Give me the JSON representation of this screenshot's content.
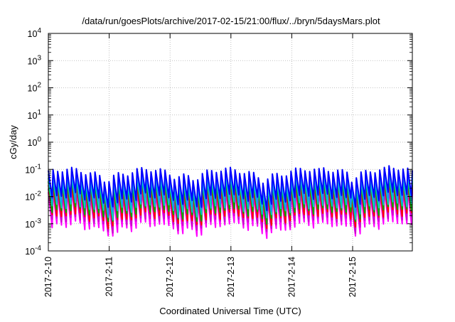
{
  "chart_data": {
    "type": "line",
    "title": "/data/run/goesPlots/archive/2017-02-15/21:00/flux/../bryn/5daysMars.plot",
    "xlabel": "Coordinated Universal Time (UTC)",
    "ylabel": "cGy/day",
    "yscale": "log",
    "ylim": [
      0.0001,
      10000
    ],
    "xlim": [
      "2017-02-10",
      "2017-02-15 21:00"
    ],
    "grid": true,
    "legend": "none",
    "y_ticks": [
      {
        "value": 0.0001,
        "base": "10",
        "exp": "-4"
      },
      {
        "value": 0.001,
        "base": "10",
        "exp": "-3"
      },
      {
        "value": 0.01,
        "base": "10",
        "exp": "-2"
      },
      {
        "value": 0.1,
        "base": "10",
        "exp": "-1"
      },
      {
        "value": 1,
        "base": "10",
        "exp": "0"
      },
      {
        "value": 10,
        "base": "10",
        "exp": "1"
      },
      {
        "value": 100,
        "base": "10",
        "exp": "2"
      },
      {
        "value": 1000,
        "base": "10",
        "exp": "3"
      },
      {
        "value": 10000,
        "base": "10",
        "exp": "4"
      }
    ],
    "x_ticks": [
      {
        "value": "2017-02-10",
        "label": "2017-2-10"
      },
      {
        "value": "2017-02-11",
        "label": "2017-2-11"
      },
      {
        "value": "2017-02-12",
        "label": "2017-2-12"
      },
      {
        "value": "2017-02-13",
        "label": "2017-2-13"
      },
      {
        "value": "2017-02-14",
        "label": "2017-2-14"
      },
      {
        "value": "2017-02-15",
        "label": "2017-2-15"
      }
    ],
    "cycles_per_day": 13.3,
    "series": [
      {
        "color": "#ff00ff",
        "peak": 0.012,
        "trough": 0.0007
      },
      {
        "color": "#cc00cc",
        "peak": 0.016,
        "trough": 0.0011
      },
      {
        "color": "#ff0000",
        "peak": 0.022,
        "trough": 0.0016
      },
      {
        "color": "#00aa00",
        "peak": 0.03,
        "trough": 0.0024
      },
      {
        "color": "#00c8c8",
        "peak": 0.04,
        "trough": 0.0035
      },
      {
        "color": "#1e90ff",
        "peak": 0.055,
        "trough": 0.0055
      },
      {
        "color": "#0000ff",
        "peak": 0.075,
        "trough": 0.008
      }
    ]
  }
}
